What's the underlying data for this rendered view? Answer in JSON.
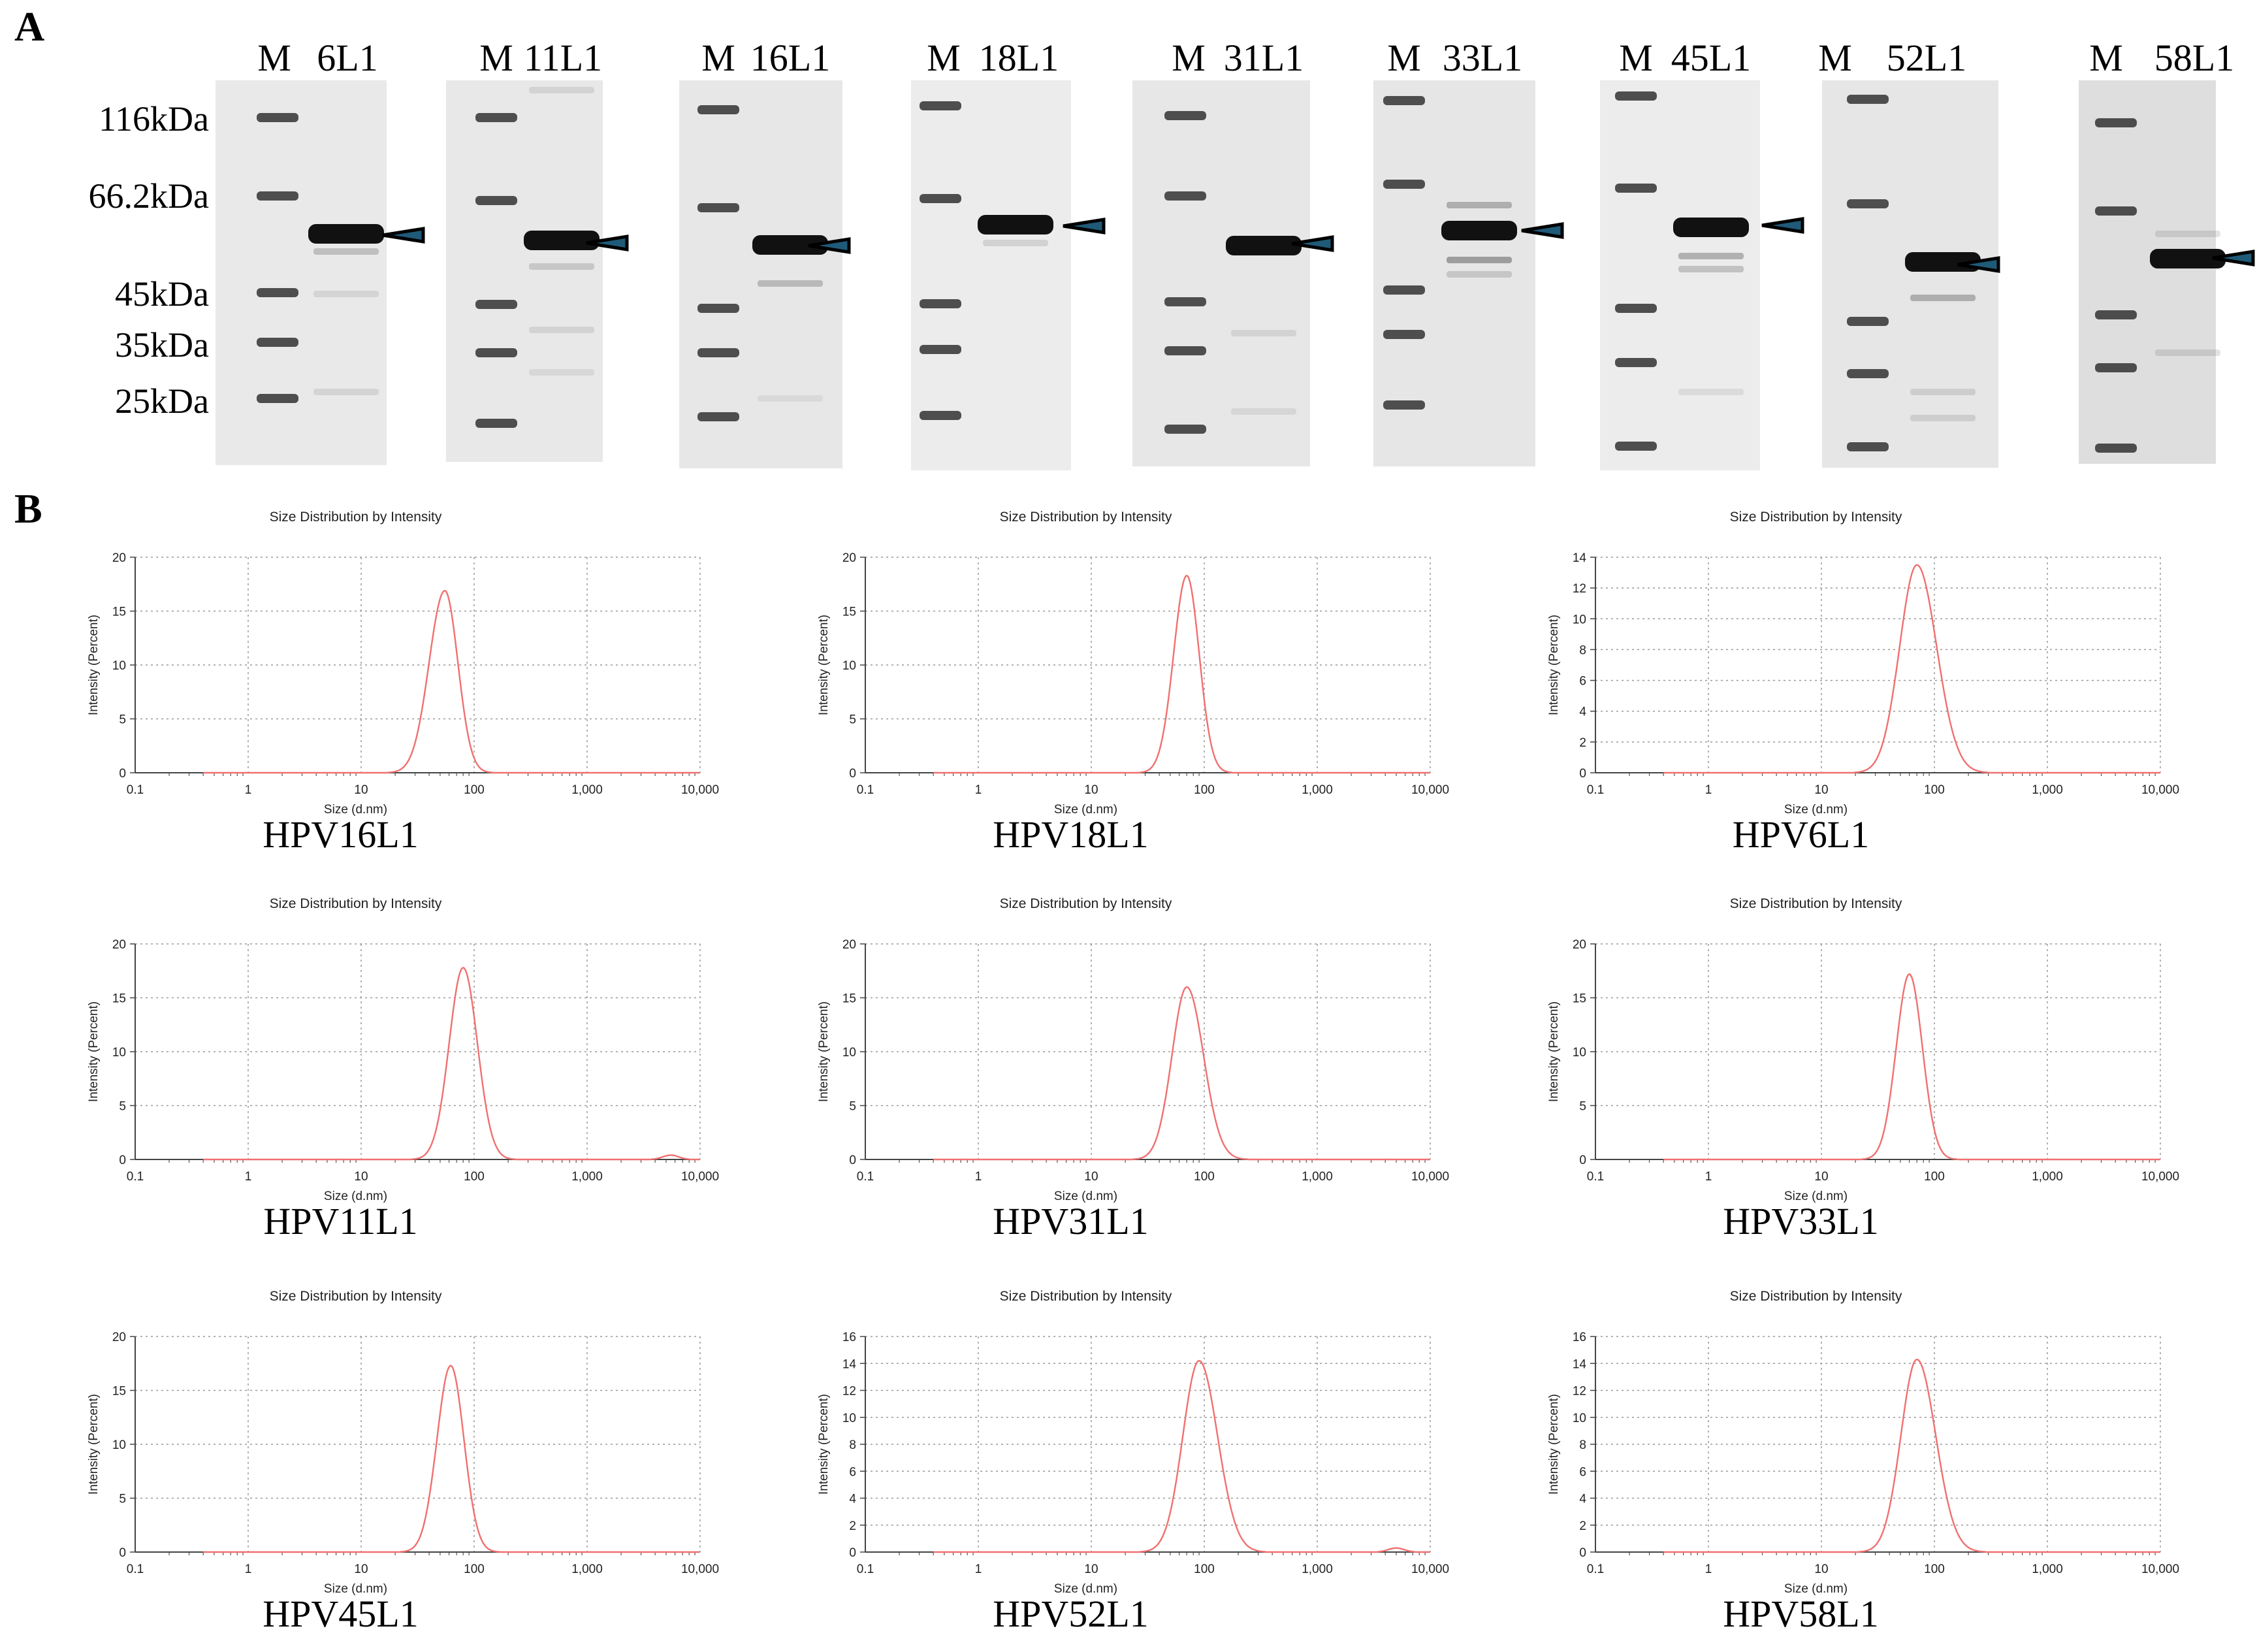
{
  "panel_a": {
    "letter": "A",
    "mw_labels": [
      "116kDa",
      "66.2kDa",
      "45kDa",
      "35kDa",
      "25kDa"
    ],
    "gels": [
      {
        "marker": "M",
        "sample": "6L1"
      },
      {
        "marker": "M",
        "sample": "11L1"
      },
      {
        "marker": "M",
        "sample": "16L1"
      },
      {
        "marker": "M",
        "sample": "18L1"
      },
      {
        "marker": "M",
        "sample": "31L1"
      },
      {
        "marker": "M",
        "sample": "33L1"
      },
      {
        "marker": "M",
        "sample": "45L1"
      },
      {
        "marker": "M",
        "sample": "52L1"
      },
      {
        "marker": "M",
        "sample": "58L1"
      }
    ],
    "arrow_color": "#1f5a78"
  },
  "panel_b": {
    "letter": "B",
    "line_color": "#f07070"
  },
  "chart_data": [
    {
      "type": "line",
      "name": "HPV16L1",
      "title": "Size Distribution by Intensity",
      "xlabel": "Size (d.nm)",
      "ylabel": "Intensity (Percent)",
      "xscale": "log",
      "xlim": [
        0.1,
        10000
      ],
      "xticks": [
        "0.1",
        "1",
        "10",
        "100",
        "1,000",
        "10,000"
      ],
      "ylim": [
        0,
        20
      ],
      "yticks": [
        0,
        5,
        10,
        15,
        20
      ],
      "grid": true,
      "peak": {
        "x": 55,
        "y": 16.9
      },
      "span": [
        24,
        110
      ],
      "extra_peak": null
    },
    {
      "type": "line",
      "name": "HPV18L1",
      "title": "Size Distribution by Intensity",
      "xlabel": "Size (d.nm)",
      "ylabel": "Intensity (Percent)",
      "xscale": "log",
      "xlim": [
        0.1,
        10000
      ],
      "xticks": [
        "0.1",
        "1",
        "10",
        "100",
        "1,000",
        "10,000"
      ],
      "ylim": [
        0,
        20
      ],
      "yticks": [
        0,
        5,
        10,
        15,
        20
      ],
      "grid": true,
      "peak": {
        "x": 70,
        "y": 18.3
      },
      "span": [
        35,
        135
      ],
      "extra_peak": null
    },
    {
      "type": "line",
      "name": "HPV6L1",
      "title": "Size Distribution by Intensity",
      "xlabel": "Size (d.nm)",
      "ylabel": "Intensity (Percent)",
      "xscale": "log",
      "xlim": [
        0.1,
        10000
      ],
      "xticks": [
        "0.1",
        "1",
        "10",
        "100",
        "1,000",
        "10,000"
      ],
      "ylim": [
        0,
        14
      ],
      "yticks": [
        0,
        2,
        4,
        6,
        8,
        10,
        12,
        14
      ],
      "grid": true,
      "peak": {
        "x": 70,
        "y": 13.5
      },
      "span": [
        28,
        200
      ],
      "extra_peak": null
    },
    {
      "type": "line",
      "name": "HPV11L1",
      "title": "Size Distribution by Intensity",
      "xlabel": "Size (d.nm)",
      "ylabel": "Intensity (Percent)",
      "xscale": "log",
      "xlim": [
        0.1,
        10000
      ],
      "xticks": [
        "0.1",
        "1",
        "10",
        "100",
        "1,000",
        "10,000"
      ],
      "ylim": [
        0,
        20
      ],
      "yticks": [
        0,
        5,
        10,
        15,
        20
      ],
      "grid": true,
      "peak": {
        "x": 80,
        "y": 17.8
      },
      "span": [
        38,
        170
      ],
      "extra_peak": {
        "x": 5500,
        "y": 0.4
      }
    },
    {
      "type": "line",
      "name": "HPV31L1",
      "title": "Size Distribution by Intensity",
      "xlabel": "Size (d.nm)",
      "ylabel": "Intensity (Percent)",
      "xscale": "log",
      "xlim": [
        0.1,
        10000
      ],
      "xticks": [
        "0.1",
        "1",
        "10",
        "100",
        "1,000",
        "10,000"
      ],
      "ylim": [
        0,
        20
      ],
      "yticks": [
        0,
        5,
        10,
        15,
        20
      ],
      "grid": true,
      "peak": {
        "x": 70,
        "y": 16.0
      },
      "span": [
        32,
        170
      ],
      "extra_peak": null
    },
    {
      "type": "line",
      "name": "HPV33L1",
      "title": "Size Distribution by Intensity",
      "xlabel": "Size (d.nm)",
      "ylabel": "Intensity (Percent)",
      "xscale": "log",
      "xlim": [
        0.1,
        10000
      ],
      "xticks": [
        "0.1",
        "1",
        "10",
        "100",
        "1,000",
        "10,000"
      ],
      "ylim": [
        0,
        20
      ],
      "yticks": [
        0,
        5,
        10,
        15,
        20
      ],
      "grid": true,
      "peak": {
        "x": 60,
        "y": 17.2
      },
      "span": [
        30,
        120
      ],
      "extra_peak": null
    },
    {
      "type": "line",
      "name": "HPV45L1",
      "title": "Size Distribution by Intensity",
      "xlabel": "Size (d.nm)",
      "ylabel": "Intensity (Percent)",
      "xscale": "log",
      "xlim": [
        0.1,
        10000
      ],
      "xticks": [
        "0.1",
        "1",
        "10",
        "100",
        "1,000",
        "10,000"
      ],
      "ylim": [
        0,
        20
      ],
      "yticks": [
        0,
        5,
        10,
        15,
        20
      ],
      "grid": true,
      "peak": {
        "x": 62,
        "y": 17.3
      },
      "span": [
        30,
        125
      ],
      "extra_peak": null
    },
    {
      "type": "line",
      "name": "HPV52L1",
      "title": "Size Distribution by Intensity",
      "xlabel": "Size (d.nm)",
      "ylabel": "Intensity (Percent)",
      "xscale": "log",
      "xlim": [
        0.1,
        10000
      ],
      "xticks": [
        "0.1",
        "1",
        "10",
        "100",
        "1,000",
        "10,000"
      ],
      "ylim": [
        0,
        16
      ],
      "yticks": [
        0,
        2,
        4,
        6,
        8,
        10,
        12,
        14,
        16
      ],
      "grid": true,
      "peak": {
        "x": 90,
        "y": 14.2
      },
      "span": [
        38,
        240
      ],
      "extra_peak": {
        "x": 5000,
        "y": 0.3
      }
    },
    {
      "type": "line",
      "name": "HPV58L1",
      "title": "Size Distribution by Intensity",
      "xlabel": "Size (d.nm)",
      "ylabel": "Intensity (Percent)",
      "xscale": "log",
      "xlim": [
        0.1,
        10000
      ],
      "xticks": [
        "0.1",
        "1",
        "10",
        "100",
        "1,000",
        "10,000"
      ],
      "ylim": [
        0,
        16
      ],
      "yticks": [
        0,
        2,
        4,
        6,
        8,
        10,
        12,
        14,
        16
      ],
      "grid": true,
      "peak": {
        "x": 70,
        "y": 14.3
      },
      "span": [
        30,
        190
      ],
      "extra_peak": null
    }
  ]
}
